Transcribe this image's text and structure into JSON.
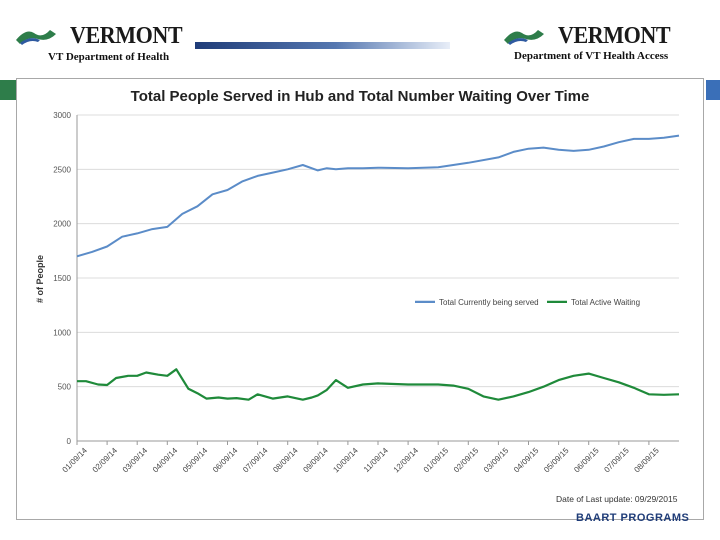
{
  "header": {
    "left_logo_word": "VERMONT",
    "left_subtitle": "VT Department of Health",
    "right_logo_word": "VERMONT",
    "right_subtitle": "Department of VT Health Access"
  },
  "footer": {
    "brand": "BAART PROGRAMS"
  },
  "colors": {
    "series_served": "#5b8cc8",
    "series_waiting": "#1f8a3a",
    "header_bar": "#1f3c78",
    "brand_text": "#1f3c78"
  },
  "chart_data": {
    "type": "line",
    "title": "Total People Served in Hub and Total Number Waiting Over Time",
    "xlabel": "",
    "ylabel": "# of People",
    "ylim": [
      0,
      3000
    ],
    "yticks": [
      "0",
      "500",
      "1000",
      "1500",
      "2000",
      "2500",
      "3000"
    ],
    "grid": true,
    "legend_position": "right-middle",
    "x_tick_labels": [
      "01/09/14",
      "02/09/14",
      "03/09/14",
      "04/09/14",
      "05/09/14",
      "06/09/14",
      "07/09/14",
      "08/09/14",
      "09/09/14",
      "10/09/14",
      "11/09/14",
      "12/09/14",
      "01/09/15",
      "02/09/15",
      "03/09/15",
      "04/09/15",
      "05/09/15",
      "06/09/15",
      "07/09/15",
      "08/09/15"
    ],
    "x_range": [
      0,
      20
    ],
    "annotation": "Date of Last update: 09/29/2015",
    "series": [
      {
        "name": "Total Currently being served",
        "x": [
          0,
          0.5,
          1,
          1.5,
          2,
          2.5,
          3,
          3.5,
          4,
          4.5,
          5,
          5.5,
          6,
          6.5,
          7,
          7.5,
          8,
          8.3,
          8.6,
          9,
          9.5,
          10,
          11,
          12,
          13,
          14,
          14.5,
          15,
          15.5,
          16,
          16.5,
          17,
          17.5,
          18,
          18.5,
          19,
          19.5,
          20
        ],
        "values": [
          1700,
          1740,
          1790,
          1880,
          1910,
          1950,
          1970,
          2090,
          2160,
          2270,
          2310,
          2390,
          2440,
          2470,
          2500,
          2540,
          2490,
          2510,
          2500,
          2510,
          2510,
          2515,
          2510,
          2520,
          2560,
          2610,
          2660,
          2690,
          2700,
          2680,
          2670,
          2680,
          2710,
          2750,
          2780,
          2780,
          2790,
          2810
        ]
      },
      {
        "name": "Total Active Waiting",
        "x": [
          0,
          0.3,
          0.7,
          1,
          1.3,
          1.7,
          2,
          2.3,
          2.7,
          3,
          3.3,
          3.7,
          4,
          4.3,
          4.7,
          5,
          5.3,
          5.7,
          6,
          6.5,
          7,
          7.5,
          7.8,
          8,
          8.3,
          8.6,
          9,
          9.5,
          10,
          11,
          12,
          12.5,
          13,
          13.5,
          14,
          14.5,
          15,
          15.5,
          16,
          16.5,
          17,
          17.5,
          18,
          18.5,
          19,
          19.5,
          20
        ],
        "values": [
          550,
          550,
          520,
          515,
          580,
          600,
          600,
          630,
          610,
          600,
          660,
          480,
          440,
          390,
          400,
          390,
          395,
          380,
          430,
          390,
          410,
          380,
          400,
          420,
          470,
          560,
          490,
          520,
          530,
          520,
          520,
          510,
          480,
          410,
          380,
          410,
          450,
          500,
          560,
          600,
          620,
          580,
          540,
          490,
          430,
          425,
          430
        ]
      }
    ]
  }
}
